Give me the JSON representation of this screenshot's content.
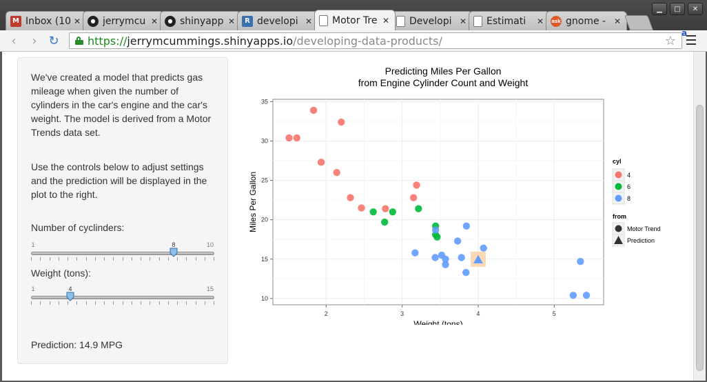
{
  "browser": {
    "tabs": [
      {
        "title": "Inbox (10",
        "favicon": "gmail-icon",
        "color": "#c0392b",
        "glyph": "M"
      },
      {
        "title": "jerrymcu",
        "favicon": "github-icon",
        "color": "#222222",
        "glyph": "●"
      },
      {
        "title": "shinyapp",
        "favicon": "github-icon",
        "color": "#222222",
        "glyph": "●"
      },
      {
        "title": "developi",
        "favicon": "r-icon",
        "color": "#3a6fb0",
        "glyph": "R"
      },
      {
        "title": "Motor Tre",
        "favicon": "document-icon",
        "color": "#ffffff",
        "glyph": ""
      },
      {
        "title": "Developi",
        "favicon": "document-icon",
        "color": "#ffffff",
        "glyph": ""
      },
      {
        "title": "Estimati",
        "favicon": "document-icon",
        "color": "#ffffff",
        "glyph": ""
      },
      {
        "title": "gnome - ",
        "favicon": "ask-icon",
        "color": "#e0592a",
        "glyph": "ask"
      }
    ],
    "active_tab": 4,
    "url": {
      "scheme": "https://",
      "host": "jerrymcummings.shinyapps.io",
      "path": "/developing-data-products/"
    }
  },
  "sidebar": {
    "intro": "We've created a model that predicts gas mileage when given the number of cylinders in the car's engine and the car's weight. The model is derived from a Motor Trends data set.",
    "instructions": "Use the controls below to adjust settings and the prediction will be displayed in the plot to the right.",
    "cyl_slider": {
      "label": "Number of cyclinders:",
      "min": 1,
      "max": 10,
      "value": 8
    },
    "wt_slider": {
      "label": "Weight (tons):",
      "min": 1,
      "max": 15,
      "value": 4
    },
    "prediction": "Prediction: 14.9 MPG"
  },
  "chart_data": {
    "type": "scatter",
    "title": "Predicting Miles Per Gallon",
    "subtitle": "from Engine Cylinder Count and Weight",
    "xlabel": "Weight (tons)",
    "ylabel": "Miles Per Gallon",
    "xlim": [
      1.3,
      5.65
    ],
    "ylim": [
      9.2,
      35.3
    ],
    "xticks": [
      2,
      3,
      4,
      5
    ],
    "yticks": [
      10,
      15,
      20,
      25,
      30,
      35
    ],
    "grid": true,
    "legend": {
      "cyl_title": "cyl",
      "cyl_entries": [
        {
          "label": "4",
          "color": "#f8766d"
        },
        {
          "label": "6",
          "color": "#00ba38"
        },
        {
          "label": "8",
          "color": "#619cff"
        }
      ],
      "from_title": "from",
      "from_entries": [
        {
          "label": "Motor Trend",
          "shape": "circle"
        },
        {
          "label": "Prediction",
          "shape": "triangle"
        }
      ],
      "placement": "right"
    },
    "series": [
      {
        "cyl": "4",
        "color": "#f8766d",
        "points": [
          [
            2.32,
            22.8
          ],
          [
            3.19,
            24.4
          ],
          [
            3.15,
            22.8
          ],
          [
            2.2,
            32.4
          ],
          [
            1.615,
            30.4
          ],
          [
            1.835,
            33.9
          ],
          [
            2.465,
            21.5
          ],
          [
            1.935,
            27.3
          ],
          [
            2.14,
            26.0
          ],
          [
            1.513,
            30.4
          ],
          [
            2.78,
            21.4
          ]
        ]
      },
      {
        "cyl": "6",
        "color": "#00ba38",
        "points": [
          [
            2.62,
            21.0
          ],
          [
            2.875,
            21.0
          ],
          [
            3.215,
            21.4
          ],
          [
            3.44,
            18.1
          ],
          [
            3.44,
            19.2
          ],
          [
            3.46,
            17.8
          ],
          [
            2.77,
            19.7
          ]
        ]
      },
      {
        "cyl": "8",
        "color": "#619cff",
        "points": [
          [
            3.44,
            18.7
          ],
          [
            3.57,
            14.3
          ],
          [
            4.07,
            16.4
          ],
          [
            3.73,
            17.3
          ],
          [
            3.78,
            15.2
          ],
          [
            5.25,
            10.4
          ],
          [
            5.424,
            10.4
          ],
          [
            5.345,
            14.7
          ],
          [
            3.52,
            15.5
          ],
          [
            3.435,
            15.2
          ],
          [
            3.84,
            13.3
          ],
          [
            3.845,
            19.2
          ],
          [
            3.17,
            15.8
          ],
          [
            3.57,
            15.0
          ]
        ]
      }
    ],
    "prediction_point": {
      "x": 4,
      "y": 14.9,
      "color": "#619cff",
      "highlight": "#fbd9b4"
    }
  }
}
